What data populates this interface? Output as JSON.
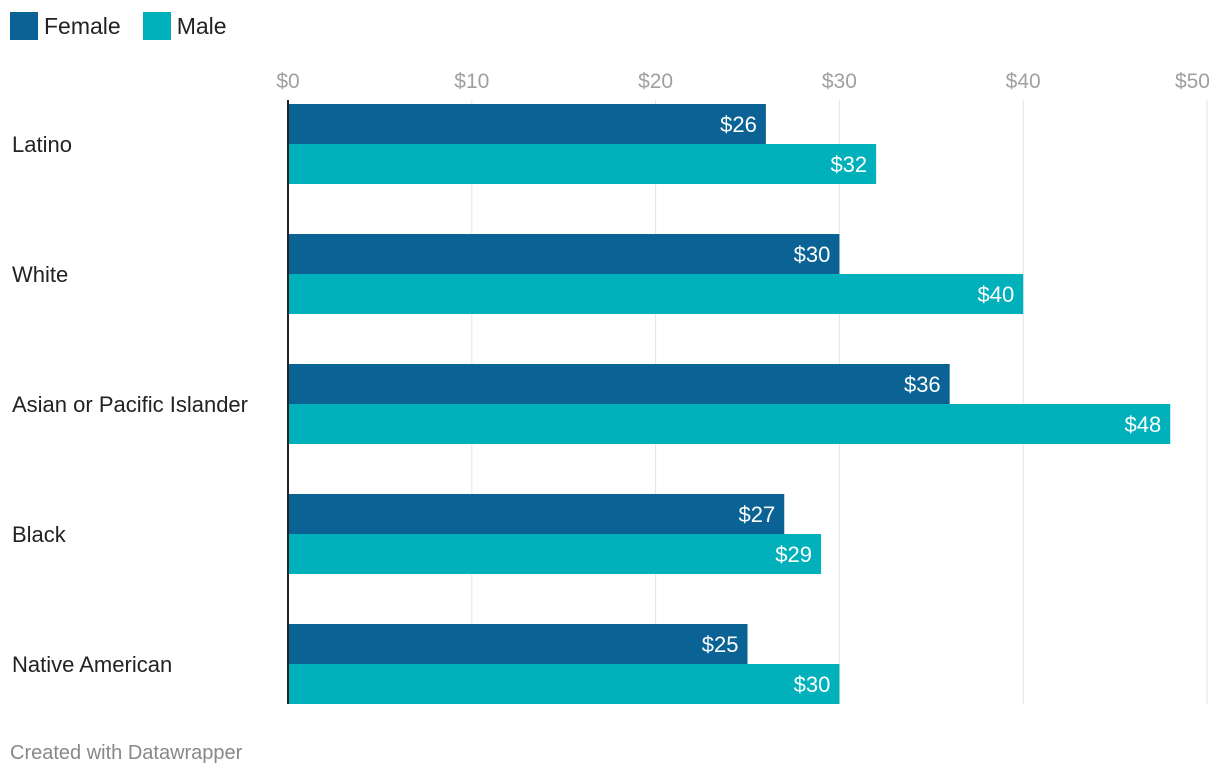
{
  "chart_data": {
    "type": "bar",
    "orientation": "horizontal",
    "categories": [
      "Latino",
      "White",
      "Asian or Pacific Islander",
      "Black",
      "Native American"
    ],
    "series": [
      {
        "name": "Female",
        "color": "#0a6394",
        "values": [
          26,
          30,
          36,
          27,
          25
        ],
        "labels": [
          "$26",
          "$30",
          "$36",
          "$27",
          "$25"
        ]
      },
      {
        "name": "Male",
        "color": "#00b0bb",
        "values": [
          32,
          40,
          48,
          29,
          30
        ],
        "labels": [
          "$32",
          "$40",
          "$48",
          "$29",
          "$30"
        ]
      }
    ],
    "xticks": [
      0,
      10,
      20,
      30,
      40,
      50
    ],
    "xtick_labels": [
      "$0",
      "$10",
      "$20",
      "$30",
      "$40",
      "$50"
    ],
    "xlim": [
      0,
      50
    ],
    "grid": true,
    "legend_position": "top-left"
  },
  "legend": {
    "female": "Female",
    "male": "Male",
    "female_color": "#0a6394",
    "male_color": "#00b0bb"
  },
  "footer": {
    "credit": "Created with Datawrapper"
  }
}
